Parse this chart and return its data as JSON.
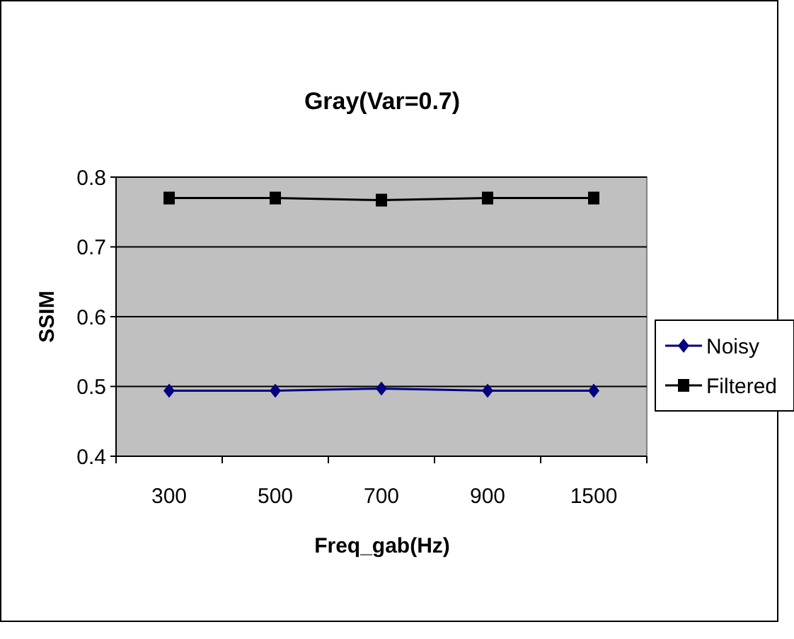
{
  "chart_data": {
    "type": "line",
    "title": "Gray(Var=0.7)",
    "xlabel": "Freq_gab(Hz)",
    "ylabel": "SSIM",
    "categories": [
      "300",
      "500",
      "700",
      "900",
      "1500"
    ],
    "series": [
      {
        "name": "Noisy",
        "color": "#000080",
        "values": [
          0.494,
          0.494,
          0.497,
          0.494,
          0.494
        ],
        "marker": "diamond"
      },
      {
        "name": "Filtered",
        "color": "#000000",
        "values": [
          0.77,
          0.77,
          0.767,
          0.77,
          0.77
        ],
        "marker": "square"
      }
    ],
    "ylim": [
      0.4,
      0.8
    ],
    "yticks": [
      0.4,
      0.5,
      0.6,
      0.7,
      0.8
    ],
    "grid": "y",
    "legend": "right",
    "line_style": "solid"
  }
}
